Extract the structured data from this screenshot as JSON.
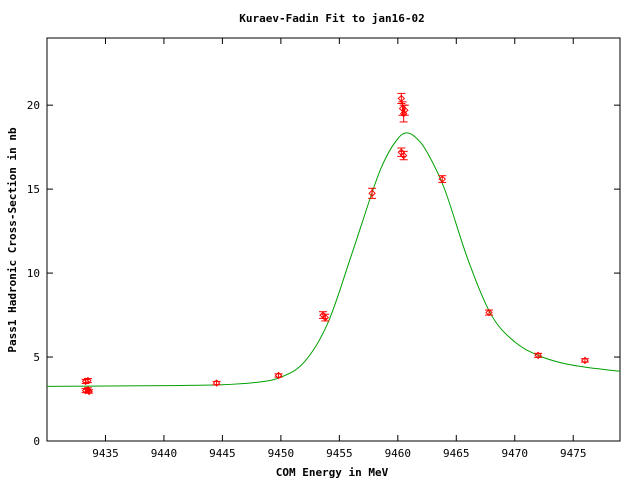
{
  "chart_data": {
    "type": "scatter",
    "title": "Kuraev-Fadin Fit to jan16-02",
    "xlabel": "COM Energy in MeV",
    "ylabel": "Pass1 Hadronic Cross-Section in nb",
    "xlim": [
      9430,
      9479
    ],
    "ylim": [
      0,
      24
    ],
    "xticks": [
      9435,
      9440,
      9445,
      9450,
      9455,
      9460,
      9465,
      9470,
      9475
    ],
    "xtick_labels": [
      "9435",
      "9440",
      "9445",
      "9450",
      "9455",
      "9460",
      "9465",
      "9470",
      "9475"
    ],
    "yticks": [
      0,
      5,
      10,
      15,
      20
    ],
    "ytick_labels": [
      "0",
      "5",
      "10",
      "15",
      "20"
    ],
    "grid": false,
    "legend": "none",
    "colors": {
      "data": "#ff0000",
      "fit": "#00a000",
      "axes": "#000000"
    },
    "series": [
      {
        "points": [
          {
            "x": 9433.3,
            "y": 3.55,
            "err": 0.12
          },
          {
            "x": 9433.5,
            "y": 3.6,
            "err": 0.12
          },
          {
            "x": 9433.3,
            "y": 3.0,
            "err": 0.12
          },
          {
            "x": 9433.5,
            "y": 3.05,
            "err": 0.12
          },
          {
            "x": 9433.6,
            "y": 2.95,
            "err": 0.1
          },
          {
            "x": 9444.5,
            "y": 3.45,
            "err": 0.1
          },
          {
            "x": 9449.8,
            "y": 3.9,
            "err": 0.1
          },
          {
            "x": 9453.6,
            "y": 7.5,
            "err": 0.2
          },
          {
            "x": 9453.8,
            "y": 7.35,
            "err": 0.2
          },
          {
            "x": 9457.8,
            "y": 14.75,
            "err": 0.3
          },
          {
            "x": 9460.3,
            "y": 20.4,
            "err": 0.3
          },
          {
            "x": 9460.4,
            "y": 19.8,
            "err": 0.4
          },
          {
            "x": 9460.5,
            "y": 19.5,
            "err": 0.5
          },
          {
            "x": 9460.6,
            "y": 19.7,
            "err": 0.3
          },
          {
            "x": 9460.3,
            "y": 17.2,
            "err": 0.25
          },
          {
            "x": 9460.5,
            "y": 17.0,
            "err": 0.25
          },
          {
            "x": 9463.8,
            "y": 15.6,
            "err": 0.2
          },
          {
            "x": 9467.8,
            "y": 7.65,
            "err": 0.15
          },
          {
            "x": 9472.0,
            "y": 5.1,
            "err": 0.12
          },
          {
            "x": 9476.0,
            "y": 4.8,
            "err": 0.1
          }
        ]
      },
      {
        "curve": [
          {
            "x": 9430,
            "y": 3.25
          },
          {
            "x": 9440,
            "y": 3.3
          },
          {
            "x": 9445,
            "y": 3.35
          },
          {
            "x": 9448,
            "y": 3.5
          },
          {
            "x": 9450,
            "y": 3.8
          },
          {
            "x": 9452,
            "y": 4.7
          },
          {
            "x": 9454,
            "y": 7.0
          },
          {
            "x": 9456,
            "y": 11.0
          },
          {
            "x": 9458,
            "y": 15.2
          },
          {
            "x": 9459,
            "y": 16.9
          },
          {
            "x": 9460,
            "y": 18.0
          },
          {
            "x": 9460.7,
            "y": 18.35
          },
          {
            "x": 9461.5,
            "y": 18.1
          },
          {
            "x": 9462.5,
            "y": 17.2
          },
          {
            "x": 9464,
            "y": 15.0
          },
          {
            "x": 9466,
            "y": 10.8
          },
          {
            "x": 9468,
            "y": 7.5
          },
          {
            "x": 9470,
            "y": 5.9
          },
          {
            "x": 9472,
            "y": 5.1
          },
          {
            "x": 9474,
            "y": 4.65
          },
          {
            "x": 9476,
            "y": 4.4
          },
          {
            "x": 9479,
            "y": 4.15
          }
        ]
      }
    ]
  }
}
